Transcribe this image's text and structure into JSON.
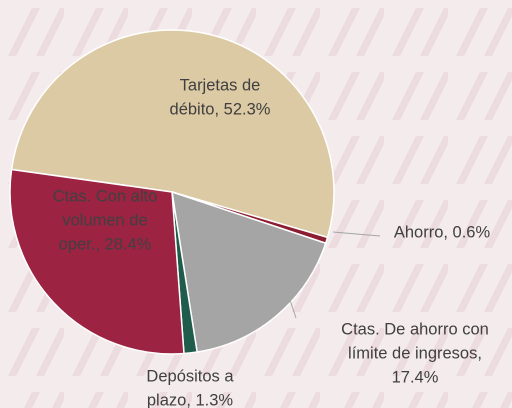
{
  "chart_data": {
    "type": "pie",
    "categories": [
      "Tarjetas de débito",
      "Ahorro",
      "Ctas. De ahorro con límite de ingresos",
      "Depósitos a plazo",
      "Ctas. Con alto volumen de oper."
    ],
    "values": [
      52.3,
      0.6,
      17.4,
      1.3,
      28.4
    ],
    "value_labels": [
      [
        "Tarjetas de",
        "débito, 52.3%"
      ],
      [
        "Ahorro, 0.6%"
      ],
      [
        "Ctas. De ahorro con",
        "límite de ingresos,",
        "17.4%"
      ],
      [
        "Depósitos a",
        "plazo, 1.3%"
      ],
      [
        "Ctas. Con alto",
        "volumen de",
        "oper., 28.4%"
      ]
    ],
    "colors": [
      "#dccaa5",
      "#8c1d30",
      "#a5a5a5",
      "#1f5c4b",
      "#9c2342"
    ]
  }
}
